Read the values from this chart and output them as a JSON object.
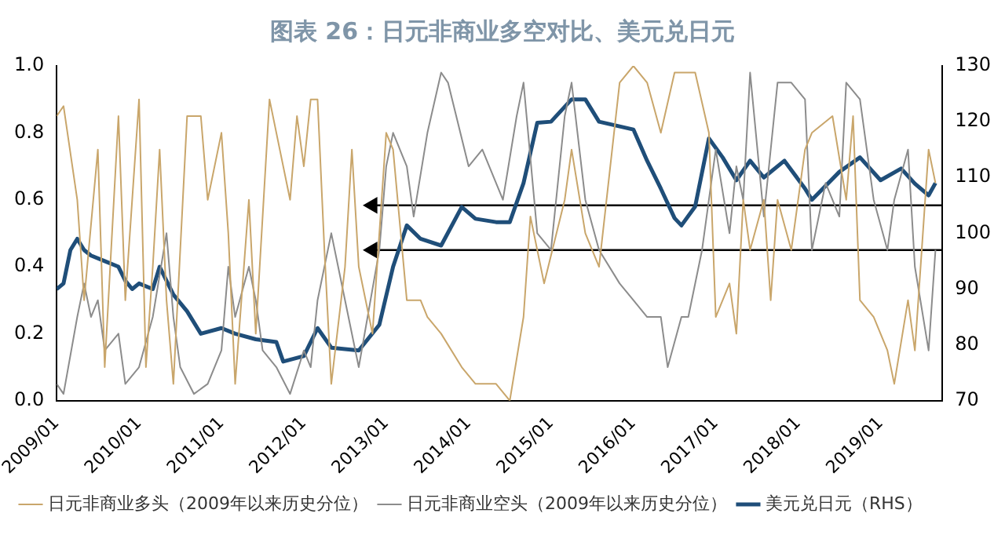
{
  "chart_data": {
    "type": "line",
    "title": "图表 26：日元非商业多空对比、美元兑日元",
    "xlim": [
      "2009-01",
      "2019-10"
    ],
    "xticks": [
      {
        "value": "2009-01",
        "label": "2009/01"
      },
      {
        "value": "2010-01",
        "label": "2010/01"
      },
      {
        "value": "2011-01",
        "label": "2011/01"
      },
      {
        "value": "2012-01",
        "label": "2012/01"
      },
      {
        "value": "2013-01",
        "label": "2013/01"
      },
      {
        "value": "2014-01",
        "label": "2014/01"
      },
      {
        "value": "2015-01",
        "label": "2015/01"
      },
      {
        "value": "2016-01",
        "label": "2016/01"
      },
      {
        "value": "2017-01",
        "label": "2017/01"
      },
      {
        "value": "2018-01",
        "label": "2018/01"
      },
      {
        "value": "2019-01",
        "label": "2019/01"
      }
    ],
    "ylim": [
      0,
      1
    ],
    "yticks": [
      {
        "value": 0,
        "label": "0.0"
      },
      {
        "value": 0.2,
        "label": "0.2"
      },
      {
        "value": 0.4,
        "label": "0.4"
      },
      {
        "value": 0.6,
        "label": "0.6"
      },
      {
        "value": 0.8,
        "label": "0.8"
      },
      {
        "value": 1,
        "label": "1.0"
      }
    ],
    "y2lim": [
      70,
      130
    ],
    "y2ticks": [
      70,
      80,
      90,
      100,
      110,
      120,
      130
    ],
    "legend": "bottom",
    "grid": false,
    "marker": "none",
    "line_style": "solid",
    "series": [
      {
        "name": "日元非商业多头（2009年以来历史分位）",
        "color": "#c9a66b",
        "x": [
          "2009-01",
          "2009-02",
          "2009-04",
          "2009-05",
          "2009-07",
          "2009-08",
          "2009-10",
          "2009-11",
          "2010-01",
          "2010-02",
          "2010-03",
          "2010-04",
          "2010-05",
          "2010-06",
          "2010-08",
          "2010-10",
          "2010-11",
          "2011-01",
          "2011-02",
          "2011-03",
          "2011-05",
          "2011-06",
          "2011-08",
          "2011-09",
          "2011-11",
          "2011-12",
          "2012-01",
          "2012-02",
          "2012-03",
          "2012-04",
          "2012-05",
          "2012-07",
          "2012-08",
          "2012-09",
          "2012-11",
          "2013-01",
          "2013-02",
          "2013-04",
          "2013-06",
          "2013-07",
          "2013-09",
          "2013-12",
          "2014-02",
          "2014-05",
          "2014-07",
          "2014-09",
          "2014-10",
          "2014-12",
          "2015-03",
          "2015-04",
          "2015-06",
          "2015-08",
          "2015-11",
          "2016-01",
          "2016-03",
          "2016-05",
          "2016-07",
          "2016-10",
          "2016-12",
          "2017-01",
          "2017-03",
          "2017-04",
          "2017-05",
          "2017-06",
          "2017-08",
          "2017-09",
          "2017-10",
          "2017-12",
          "2018-02",
          "2018-03",
          "2018-06",
          "2018-08",
          "2018-09",
          "2018-10",
          "2018-12",
          "2019-02",
          "2019-03",
          "2019-05",
          "2019-06",
          "2019-08",
          "2019-09"
        ],
        "values": [
          0.85,
          0.88,
          0.6,
          0.3,
          0.75,
          0.1,
          0.85,
          0.3,
          0.9,
          0.1,
          0.4,
          0.75,
          0.3,
          0.05,
          0.85,
          0.85,
          0.6,
          0.8,
          0.5,
          0.05,
          0.6,
          0.2,
          0.9,
          0.8,
          0.6,
          0.85,
          0.7,
          0.9,
          0.9,
          0.45,
          0.05,
          0.4,
          0.75,
          0.4,
          0.2,
          0.8,
          0.75,
          0.3,
          0.3,
          0.25,
          0.2,
          0.1,
          0.05,
          0.05,
          0,
          0.25,
          0.55,
          0.35,
          0.6,
          0.75,
          0.5,
          0.4,
          0.95,
          1,
          0.95,
          0.8,
          0.98,
          0.98,
          0.8,
          0.25,
          0.35,
          0.2,
          0.6,
          0.45,
          0.6,
          0.3,
          0.6,
          0.45,
          0.75,
          0.8,
          0.85,
          0.6,
          0.85,
          0.3,
          0.25,
          0.15,
          0.05,
          0.3,
          0.15,
          0.75,
          0.65
        ]
      },
      {
        "name": "日元非商业空头（2009年以来历史分位）",
        "color": "#8c8c8c",
        "x": [
          "2009-01",
          "2009-02",
          "2009-04",
          "2009-05",
          "2009-06",
          "2009-07",
          "2009-08",
          "2009-10",
          "2009-11",
          "2010-01",
          "2010-03",
          "2010-05",
          "2010-06",
          "2010-07",
          "2010-09",
          "2010-11",
          "2011-01",
          "2011-02",
          "2011-03",
          "2011-05",
          "2011-06",
          "2011-07",
          "2011-09",
          "2011-11",
          "2012-01",
          "2012-02",
          "2012-03",
          "2012-05",
          "2012-07",
          "2012-09",
          "2012-12",
          "2013-01",
          "2013-02",
          "2013-04",
          "2013-05",
          "2013-07",
          "2013-09",
          "2013-10",
          "2014-01",
          "2014-03",
          "2014-06",
          "2014-08",
          "2014-09",
          "2014-11",
          "2015-01",
          "2015-03",
          "2015-04",
          "2015-06",
          "2015-08",
          "2015-11",
          "2016-01",
          "2016-03",
          "2016-05",
          "2016-06",
          "2016-08",
          "2016-09",
          "2016-11",
          "2017-01",
          "2017-03",
          "2017-04",
          "2017-05",
          "2017-06",
          "2017-08",
          "2017-10",
          "2017-12",
          "2018-02",
          "2018-03",
          "2018-05",
          "2018-07",
          "2018-08",
          "2018-10",
          "2018-12",
          "2019-02",
          "2019-03",
          "2019-05",
          "2019-06",
          "2019-08",
          "2019-09"
        ],
        "values": [
          0.05,
          0.02,
          0.25,
          0.35,
          0.25,
          0.3,
          0.15,
          0.2,
          0.05,
          0.1,
          0.25,
          0.5,
          0.25,
          0.1,
          0.02,
          0.05,
          0.15,
          0.4,
          0.25,
          0.4,
          0.3,
          0.15,
          0.1,
          0.02,
          0.15,
          0.1,
          0.3,
          0.5,
          0.3,
          0.1,
          0.45,
          0.7,
          0.8,
          0.7,
          0.55,
          0.8,
          0.98,
          0.95,
          0.7,
          0.75,
          0.6,
          0.85,
          0.95,
          0.5,
          0.45,
          0.85,
          0.95,
          0.6,
          0.45,
          0.35,
          0.3,
          0.25,
          0.25,
          0.1,
          0.25,
          0.25,
          0.45,
          0.75,
          0.5,
          0.7,
          0.6,
          0.98,
          0.55,
          0.95,
          0.95,
          0.9,
          0.45,
          0.65,
          0.55,
          0.95,
          0.9,
          0.6,
          0.45,
          0.6,
          0.75,
          0.4,
          0.15,
          0.45
        ]
      },
      {
        "name": "美元兑日元（RHS）",
        "color": "#1f4e79",
        "axis": "y2",
        "x": [
          "2009-01",
          "2009-02",
          "2009-03",
          "2009-04",
          "2009-05",
          "2009-06",
          "2009-08",
          "2009-10",
          "2009-11",
          "2009-12",
          "2010-01",
          "2010-03",
          "2010-04",
          "2010-06",
          "2010-08",
          "2010-10",
          "2011-01",
          "2011-03",
          "2011-06",
          "2011-09",
          "2011-10",
          "2012-01",
          "2012-03",
          "2012-05",
          "2012-09",
          "2012-12",
          "2013-02",
          "2013-04",
          "2013-06",
          "2013-09",
          "2013-12",
          "2014-02",
          "2014-05",
          "2014-07",
          "2014-09",
          "2014-11",
          "2015-01",
          "2015-04",
          "2015-06",
          "2015-08",
          "2016-01",
          "2016-03",
          "2016-05",
          "2016-07",
          "2016-08",
          "2016-10",
          "2016-12",
          "2017-02",
          "2017-04",
          "2017-06",
          "2017-08",
          "2017-11",
          "2018-02",
          "2018-03",
          "2018-07",
          "2018-10",
          "2019-01",
          "2019-04",
          "2019-06",
          "2019-08",
          "2019-09"
        ],
        "values": [
          90,
          91,
          97,
          99,
          97,
          96,
          95,
          94,
          91.5,
          90,
          91,
          90,
          94,
          89,
          86,
          82,
          83,
          82,
          81,
          80.5,
          77,
          78,
          83,
          79.5,
          79,
          83.6,
          94,
          101.4,
          99,
          97.8,
          104.7,
          102.6,
          102,
          102,
          109,
          119.8,
          120,
          124,
          124,
          120,
          118.6,
          113,
          108,
          102.7,
          101.4,
          104.8,
          117,
          113.6,
          109.5,
          113,
          110,
          113,
          108,
          106,
          111,
          113.6,
          109.5,
          111.6,
          108.9,
          106.8,
          109
        ]
      },
      {
        "color": "#000000",
        "axis": "y2",
        "marker": "triangle",
        "x": [
          "2012-11",
          "2019-10"
        ],
        "values": [
          105,
          105
        ]
      },
      {
        "color": "#000000",
        "axis": "y2",
        "marker": "triangle",
        "x": [
          "2012-11",
          "2019-10"
        ],
        "values": [
          97,
          97
        ]
      }
    ]
  }
}
